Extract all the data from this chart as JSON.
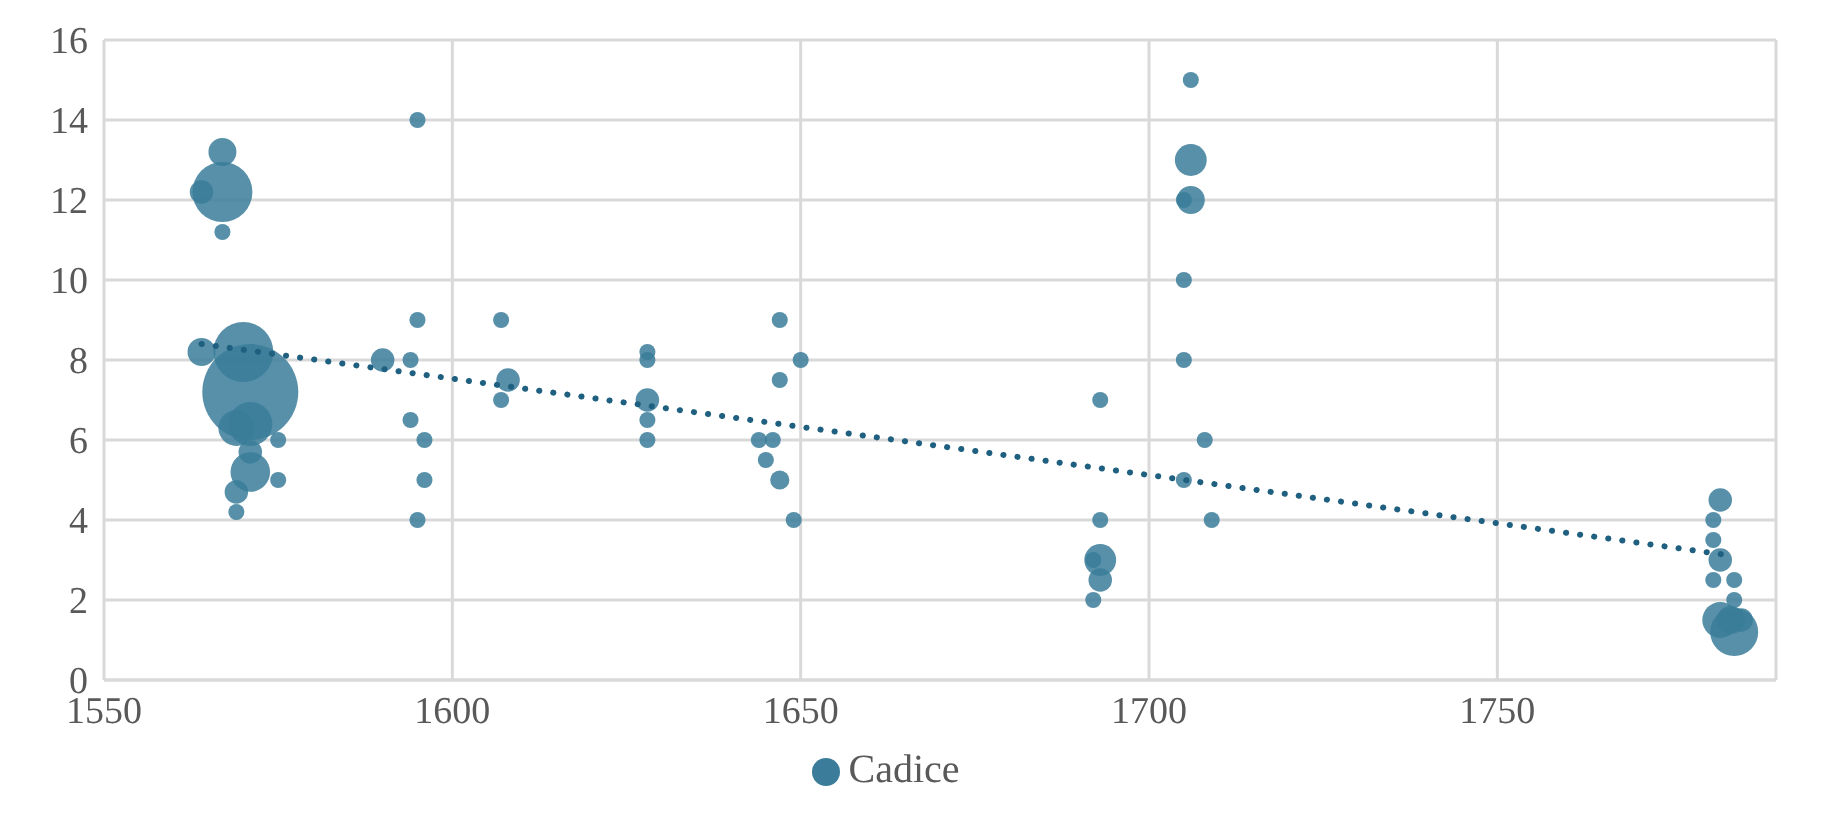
{
  "chart_data": {
    "type": "bubble",
    "xlim": [
      1550,
      1790
    ],
    "xticks": [
      1550,
      1600,
      1650,
      1700,
      1750
    ],
    "ylim": [
      0,
      16
    ],
    "yticks": [
      0,
      2,
      4,
      6,
      8,
      10,
      12,
      14,
      16
    ],
    "grid": true,
    "legend": "bottom",
    "series": [
      {
        "name": "Cadice",
        "type": "bubble",
        "color": "#3a7c99",
        "x": [
          1567,
          1567,
          1564,
          1567,
          1595,
          1564,
          1570,
          1571,
          1569,
          1571,
          1571,
          1571,
          1569,
          1569,
          1575,
          1575,
          1595,
          1590,
          1594,
          1594,
          1596,
          1596,
          1595,
          1607,
          1607,
          1608,
          1628,
          1628,
          1628,
          1628,
          1628,
          1644,
          1646,
          1645,
          1647,
          1647,
          1647,
          1650,
          1649,
          1706,
          1706,
          1706,
          1705,
          1705,
          1705,
          1708,
          1705,
          1709,
          1693,
          1693,
          1693,
          1692,
          1693,
          1692,
          1782,
          1781,
          1781,
          1782,
          1781,
          1784,
          1784,
          1783.5,
          1782,
          1784,
          1785
        ],
        "values": [
          13.2,
          12.2,
          12.2,
          11.2,
          14,
          8.2,
          8.2,
          7.2,
          6.3,
          6.4,
          5.7,
          5.2,
          4.7,
          4.2,
          6,
          5,
          9,
          8,
          8,
          6.5,
          6,
          5,
          4,
          9,
          7,
          7.5,
          8.2,
          8,
          7,
          6.5,
          6,
          6,
          6,
          5.5,
          9,
          7.5,
          5,
          8,
          4,
          15,
          13,
          12,
          12,
          10,
          8,
          6,
          5,
          4,
          7,
          4,
          3,
          3,
          2.5,
          2,
          4.5,
          4,
          3.5,
          3,
          2.5,
          2.5,
          2,
          1.5,
          1.5,
          1.2,
          1.5
        ],
        "sizes": [
          0.085,
          0.39,
          0.06,
          0.028,
          0.028,
          0.085,
          0.39,
          1,
          0.14,
          0.21,
          0.06,
          0.17,
          0.06,
          0.028,
          0.028,
          0.028,
          0.028,
          0.06,
          0.028,
          0.028,
          0.028,
          0.028,
          0.028,
          0.028,
          0.028,
          0.06,
          0.028,
          0.028,
          0.06,
          0.028,
          0.028,
          0.028,
          0.028,
          0.028,
          0.028,
          0.028,
          0.04,
          0.028,
          0.028,
          0.028,
          0.11,
          0.085,
          0.028,
          0.028,
          0.028,
          0.028,
          0.028,
          0.028,
          0.028,
          0.028,
          0.11,
          0.028,
          0.06,
          0.028,
          0.06,
          0.028,
          0.028,
          0.06,
          0.028,
          0.028,
          0.028,
          0.085,
          0.14,
          0.25,
          0.06
        ]
      },
      {
        "type": "line",
        "color": "#1f5f7f",
        "line_style": "dotted",
        "x": [
          1564,
          1784
        ],
        "values": [
          8.4,
          3.1
        ]
      }
    ]
  }
}
